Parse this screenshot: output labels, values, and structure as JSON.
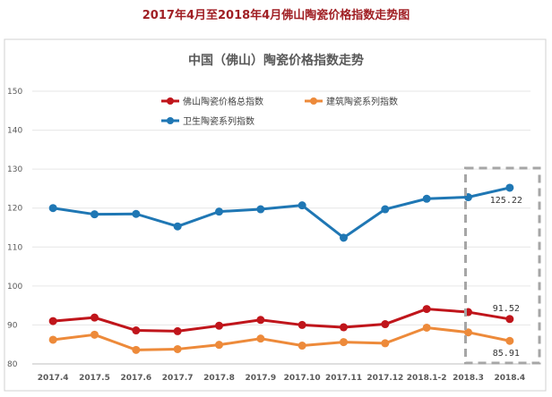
{
  "page": {
    "title": "2017年4月至2018年4月佛山陶瓷价格指数走势图"
  },
  "chart_data": {
    "type": "line",
    "title": "中国（佛山）陶瓷价格指数走势",
    "categories": [
      "2017.4",
      "2017.5",
      "2017.6",
      "2017.7",
      "2017.8",
      "2017.9",
      "2017.10",
      "2017.11",
      "2017.12",
      "2018.1-2",
      "2018.3",
      "2018.4"
    ],
    "ylim": [
      80,
      150
    ],
    "yticks": [
      80,
      90,
      100,
      110,
      120,
      130,
      140,
      150
    ],
    "grid": "horizontal",
    "legend_position": "top-left",
    "series": [
      {
        "name": "佛山陶瓷价格总指数",
        "color": "#c0151b",
        "values": [
          91.0,
          91.9,
          88.6,
          88.4,
          89.8,
          91.3,
          90.0,
          89.4,
          90.2,
          94.1,
          93.3,
          91.52
        ]
      },
      {
        "name": "建筑陶瓷系列指数",
        "color": "#ed8a3a",
        "values": [
          86.2,
          87.5,
          83.6,
          83.8,
          84.9,
          86.5,
          84.7,
          85.6,
          85.3,
          89.3,
          88.1,
          85.91
        ]
      },
      {
        "name": "卫生陶瓷系列指数",
        "color": "#1f77b4",
        "values": [
          120.0,
          118.4,
          118.5,
          115.3,
          119.1,
          119.7,
          120.7,
          112.4,
          119.7,
          122.4,
          122.8,
          125.22
        ]
      }
    ],
    "annotations": [
      {
        "text": "125.22",
        "series": 2,
        "index": 11
      },
      {
        "text": "91.52",
        "series": 0,
        "index": 11
      },
      {
        "text": "85.91",
        "series": 1,
        "index": 11
      }
    ],
    "highlight": {
      "index": 11,
      "style": "dashed-box"
    }
  }
}
